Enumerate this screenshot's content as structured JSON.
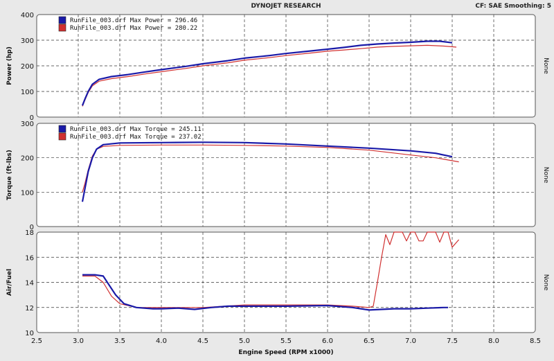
{
  "header": {
    "title": "DYNOJET RESEARCH",
    "settings": "CF: SAE  Smoothing: 5"
  },
  "x_axis": {
    "label": "Engine Speed (RPM x1000)",
    "ticks": [
      "2.5",
      "3.0",
      "3.5",
      "4.0",
      "4.5",
      "5.0",
      "5.5",
      "6.0",
      "6.5",
      "7.0",
      "7.5",
      "8.0",
      "8.5"
    ]
  },
  "colors": {
    "run1": "#1a1aa8",
    "run2": "#d03030",
    "bg": "#e9e9e9",
    "plot": "#ffffff"
  },
  "chart_data": [
    {
      "type": "line",
      "ylabel": "Power (hp)",
      "ylim": [
        0,
        400
      ],
      "yticks": [
        "0",
        "100",
        "200",
        "300",
        "400"
      ],
      "xlim": [
        2.5,
        8.5
      ],
      "right_label": "None",
      "legend": [
        "RunFile_003.drf Max Power = 296.46",
        "RunFile_003.drf Max Power = 280.22"
      ],
      "series": [
        {
          "color": "#1a1aa8",
          "points": [
            [
              3.05,
              45
            ],
            [
              3.08,
              70
            ],
            [
              3.12,
              100
            ],
            [
              3.17,
              128
            ],
            [
              3.25,
              147
            ],
            [
              3.4,
              158
            ],
            [
              3.6,
              166
            ],
            [
              3.8,
              176
            ],
            [
              4.0,
              185
            ],
            [
              4.3,
              198
            ],
            [
              4.5,
              208
            ],
            [
              4.8,
              220
            ],
            [
              5.0,
              230
            ],
            [
              5.3,
              240
            ],
            [
              5.5,
              248
            ],
            [
              5.8,
              258
            ],
            [
              6.0,
              265
            ],
            [
              6.2,
              272
            ],
            [
              6.4,
              280
            ],
            [
              6.6,
              285
            ],
            [
              6.8,
              289
            ],
            [
              7.0,
              292
            ],
            [
              7.2,
              296
            ],
            [
              7.35,
              296
            ],
            [
              7.5,
              290
            ]
          ]
        },
        {
          "color": "#d03030",
          "points": [
            [
              3.05,
              42
            ],
            [
              3.08,
              66
            ],
            [
              3.12,
              96
            ],
            [
              3.17,
              122
            ],
            [
              3.25,
              140
            ],
            [
              3.4,
              150
            ],
            [
              3.6,
              158
            ],
            [
              3.8,
              168
            ],
            [
              4.0,
              177
            ],
            [
              4.3,
              190
            ],
            [
              4.5,
              200
            ],
            [
              4.8,
              212
            ],
            [
              5.0,
              222
            ],
            [
              5.3,
              232
            ],
            [
              5.5,
              240
            ],
            [
              5.8,
              250
            ],
            [
              6.0,
              257
            ],
            [
              6.2,
              262
            ],
            [
              6.4,
              267
            ],
            [
              6.6,
              273
            ],
            [
              6.8,
              276
            ],
            [
              7.0,
              278
            ],
            [
              7.2,
              280
            ],
            [
              7.4,
              277
            ],
            [
              7.55,
              273
            ]
          ]
        }
      ]
    },
    {
      "type": "line",
      "ylabel": "Torque (ft-lbs)",
      "ylim": [
        0,
        300
      ],
      "yticks": [
        "0",
        "100",
        "200",
        "300"
      ],
      "xlim": [
        2.5,
        8.5
      ],
      "right_label": "None",
      "legend": [
        "RunFile_003.drf Max Torque = 245.11",
        "RunFile_003.drf Max Torque = 237.02"
      ],
      "series": [
        {
          "color": "#1a1aa8",
          "points": [
            [
              3.05,
              72
            ],
            [
              3.08,
              110
            ],
            [
              3.12,
              160
            ],
            [
              3.17,
              200
            ],
            [
              3.22,
              225
            ],
            [
              3.3,
              238
            ],
            [
              3.5,
              243
            ],
            [
              4.0,
              244
            ],
            [
              4.5,
              245
            ],
            [
              5.0,
              244
            ],
            [
              5.5,
              240
            ],
            [
              6.0,
              234
            ],
            [
              6.5,
              228
            ],
            [
              7.0,
              220
            ],
            [
              7.3,
              213
            ],
            [
              7.5,
              203
            ]
          ]
        },
        {
          "color": "#d03030",
          "points": [
            [
              3.05,
              100
            ],
            [
              3.08,
              125
            ],
            [
              3.12,
              165
            ],
            [
              3.17,
              205
            ],
            [
              3.22,
              225
            ],
            [
              3.3,
              233
            ],
            [
              3.5,
              236
            ],
            [
              4.0,
              237
            ],
            [
              4.5,
              237
            ],
            [
              5.0,
              236
            ],
            [
              5.5,
              234
            ],
            [
              6.0,
              230
            ],
            [
              6.5,
              222
            ],
            [
              7.0,
              208
            ],
            [
              7.3,
              200
            ],
            [
              7.58,
              188
            ]
          ]
        }
      ]
    },
    {
      "type": "line",
      "ylabel": "Air/Fuel",
      "ylim": [
        10,
        18
      ],
      "yticks": [
        "10",
        "12",
        "14",
        "16",
        "18"
      ],
      "xlim": [
        2.5,
        8.5
      ],
      "right_label": "None",
      "legend": [],
      "series": [
        {
          "color": "#1a1aa8",
          "points": [
            [
              3.05,
              14.6
            ],
            [
              3.2,
              14.6
            ],
            [
              3.3,
              14.5
            ],
            [
              3.35,
              14.0
            ],
            [
              3.45,
              13.0
            ],
            [
              3.55,
              12.3
            ],
            [
              3.7,
              12.0
            ],
            [
              3.9,
              11.9
            ],
            [
              4.0,
              11.9
            ],
            [
              4.2,
              11.95
            ],
            [
              4.4,
              11.85
            ],
            [
              4.6,
              12.0
            ],
            [
              4.8,
              12.1
            ],
            [
              5.0,
              12.1
            ],
            [
              5.5,
              12.1
            ],
            [
              6.0,
              12.15
            ],
            [
              6.3,
              12.0
            ],
            [
              6.5,
              11.8
            ],
            [
              6.8,
              11.9
            ],
            [
              7.0,
              11.9
            ],
            [
              7.2,
              11.95
            ],
            [
              7.4,
              12.0
            ],
            [
              7.45,
              12.0
            ]
          ]
        },
        {
          "color": "#d03030",
          "points": [
            [
              3.05,
              14.5
            ],
            [
              3.2,
              14.5
            ],
            [
              3.3,
              14.0
            ],
            [
              3.4,
              12.9
            ],
            [
              3.5,
              12.3
            ],
            [
              3.7,
              12.0
            ],
            [
              4.0,
              12.0
            ],
            [
              4.5,
              12.0
            ],
            [
              5.0,
              12.2
            ],
            [
              5.5,
              12.2
            ],
            [
              6.0,
              12.2
            ],
            [
              6.3,
              12.1
            ],
            [
              6.5,
              12.0
            ],
            [
              6.55,
              12.1
            ],
            [
              6.6,
              14.0
            ],
            [
              6.65,
              16.0
            ],
            [
              6.7,
              17.8
            ],
            [
              6.75,
              17.0
            ],
            [
              6.8,
              18.0
            ],
            [
              6.9,
              18.0
            ],
            [
              6.95,
              17.3
            ],
            [
              7.0,
              18.0
            ],
            [
              7.05,
              18.0
            ],
            [
              7.1,
              17.3
            ],
            [
              7.15,
              17.3
            ],
            [
              7.2,
              18.0
            ],
            [
              7.3,
              18.0
            ],
            [
              7.35,
              17.2
            ],
            [
              7.4,
              18.0
            ],
            [
              7.45,
              18.0
            ],
            [
              7.5,
              16.8
            ],
            [
              7.58,
              17.4
            ]
          ]
        }
      ]
    }
  ]
}
